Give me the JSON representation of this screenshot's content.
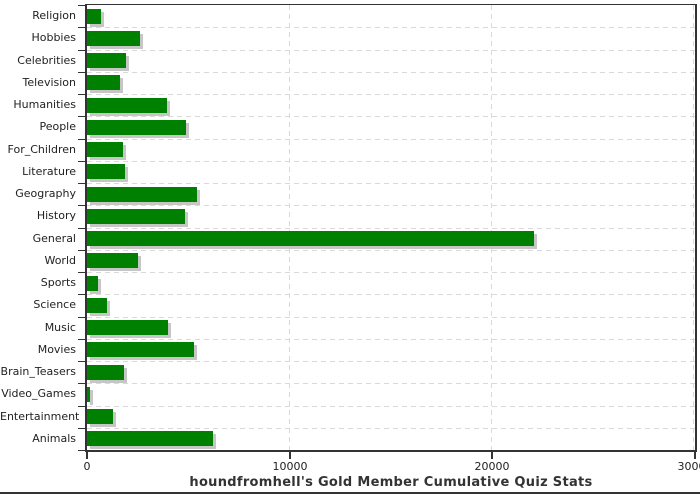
{
  "chart_data": {
    "type": "bar",
    "orientation": "horizontal",
    "title": "houndfromhell's Gold Member Cumulative Quiz Stats",
    "categories": [
      "Religion",
      "Hobbies",
      "Celebrities",
      "Television",
      "Humanities",
      "People",
      "For_Children",
      "Literature",
      "Geography",
      "History",
      "General",
      "World",
      "Sports",
      "Science",
      "Music",
      "Movies",
      "Brain_Teasers",
      "Video_Games",
      "Entertainment",
      "Animals"
    ],
    "values": [
      680,
      2630,
      1910,
      1640,
      3960,
      4900,
      1780,
      1890,
      5430,
      4850,
      22050,
      2520,
      540,
      990,
      4000,
      5260,
      1830,
      170,
      1280,
      6230
    ],
    "xlabel": "",
    "ylabel": "",
    "xlim": [
      0,
      30000
    ],
    "x_ticks": [
      0,
      10000,
      20000,
      30000
    ],
    "x_tick_labels": [
      "0",
      "10000",
      "20000",
      "30000"
    ],
    "grid": "dashed",
    "legend_position": "none",
    "bar_color": "#008000",
    "bar_shadow_color": "#c6c6c6",
    "grid_color": "#d9d9d9",
    "axis_color": "#333333",
    "text_color": "#222222"
  }
}
